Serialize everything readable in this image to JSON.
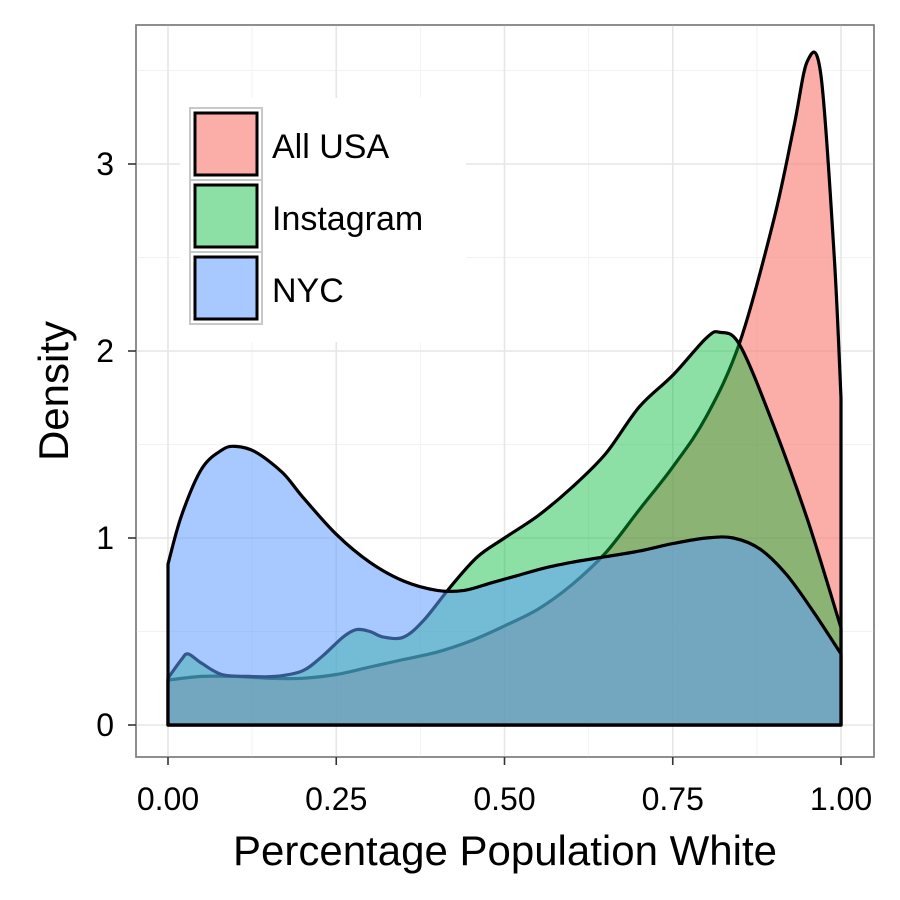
{
  "chart_data": {
    "type": "area",
    "xlabel": "Percentage Population White",
    "ylabel": "Density",
    "xlim": [
      0,
      1
    ],
    "ylim": [
      0,
      3.7
    ],
    "x_ticks": [
      0,
      0.25,
      0.5,
      0.75,
      1
    ],
    "x_tick_labels": [
      "0.00",
      "0.25",
      "0.50",
      "0.75",
      "1.00"
    ],
    "y_ticks": [
      0,
      1,
      2,
      3
    ],
    "y_tick_labels": [
      "0",
      "1",
      "2",
      "3"
    ],
    "grid": true,
    "legend_position": "top-left",
    "series": [
      {
        "name": "All USA",
        "color": "#F8766D",
        "x": [
          0,
          0.05,
          0.1,
          0.15,
          0.2,
          0.25,
          0.3,
          0.35,
          0.4,
          0.45,
          0.5,
          0.55,
          0.6,
          0.65,
          0.7,
          0.75,
          0.8,
          0.85,
          0.9,
          0.93,
          0.95,
          0.97,
          0.99,
          1.0
        ],
        "y": [
          0.24,
          0.26,
          0.26,
          0.25,
          0.25,
          0.27,
          0.31,
          0.35,
          0.39,
          0.45,
          0.53,
          0.62,
          0.75,
          0.92,
          1.15,
          1.38,
          1.65,
          2.05,
          2.7,
          3.2,
          3.55,
          3.48,
          2.5,
          1.75
        ]
      },
      {
        "name": "Instagram",
        "color": "#00BA38",
        "x": [
          0,
          0.02,
          0.03,
          0.05,
          0.08,
          0.12,
          0.16,
          0.2,
          0.23,
          0.26,
          0.28,
          0.3,
          0.32,
          0.35,
          0.38,
          0.42,
          0.46,
          0.5,
          0.55,
          0.6,
          0.65,
          0.7,
          0.75,
          0.8,
          0.82,
          0.85,
          0.9,
          0.95,
          1.0
        ],
        "y": [
          0.25,
          0.35,
          0.38,
          0.33,
          0.27,
          0.26,
          0.26,
          0.29,
          0.37,
          0.47,
          0.51,
          0.5,
          0.47,
          0.47,
          0.56,
          0.74,
          0.9,
          1.0,
          1.12,
          1.27,
          1.45,
          1.7,
          1.87,
          2.07,
          2.1,
          2.03,
          1.6,
          1.1,
          0.52
        ]
      },
      {
        "name": "NYC",
        "color": "#619CFF",
        "x": [
          0,
          0.02,
          0.05,
          0.08,
          0.1,
          0.13,
          0.17,
          0.2,
          0.25,
          0.3,
          0.35,
          0.4,
          0.44,
          0.48,
          0.52,
          0.56,
          0.6,
          0.65,
          0.7,
          0.75,
          0.8,
          0.84,
          0.88,
          0.92,
          0.96,
          1.0
        ],
        "y": [
          0.86,
          1.12,
          1.37,
          1.47,
          1.49,
          1.46,
          1.35,
          1.22,
          1.02,
          0.87,
          0.77,
          0.72,
          0.72,
          0.76,
          0.8,
          0.84,
          0.87,
          0.9,
          0.93,
          0.97,
          1.0,
          1.0,
          0.94,
          0.8,
          0.6,
          0.38
        ]
      }
    ]
  }
}
